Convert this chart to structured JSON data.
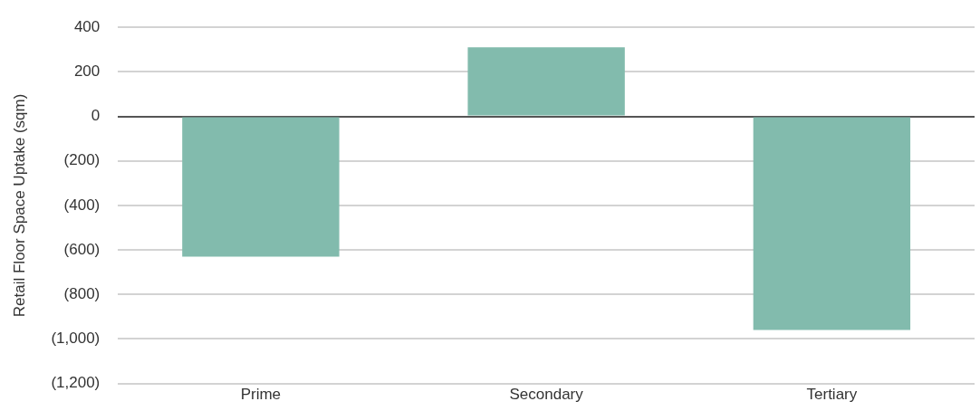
{
  "chart_data": {
    "type": "bar",
    "ylabel": "Retail Floor Space Uptake (sqm)",
    "categories": [
      "Prime",
      "Secondary",
      "Tertiary"
    ],
    "values": [
      -630,
      310,
      -960
    ],
    "color": "#82bbad",
    "ylim": [
      -1200,
      400
    ],
    "yticks": [
      400,
      200,
      0,
      {
        "value": -200,
        "label": "(200)"
      },
      {
        "value": -400,
        "label": "(400)"
      },
      {
        "value": -600,
        "label": "(600)"
      },
      {
        "value": -800,
        "label": "(800)"
      },
      {
        "value": -1000,
        "label": "(1,000)"
      },
      {
        "value": -1200,
        "label": "(1,200)"
      }
    ],
    "grid": "y"
  }
}
